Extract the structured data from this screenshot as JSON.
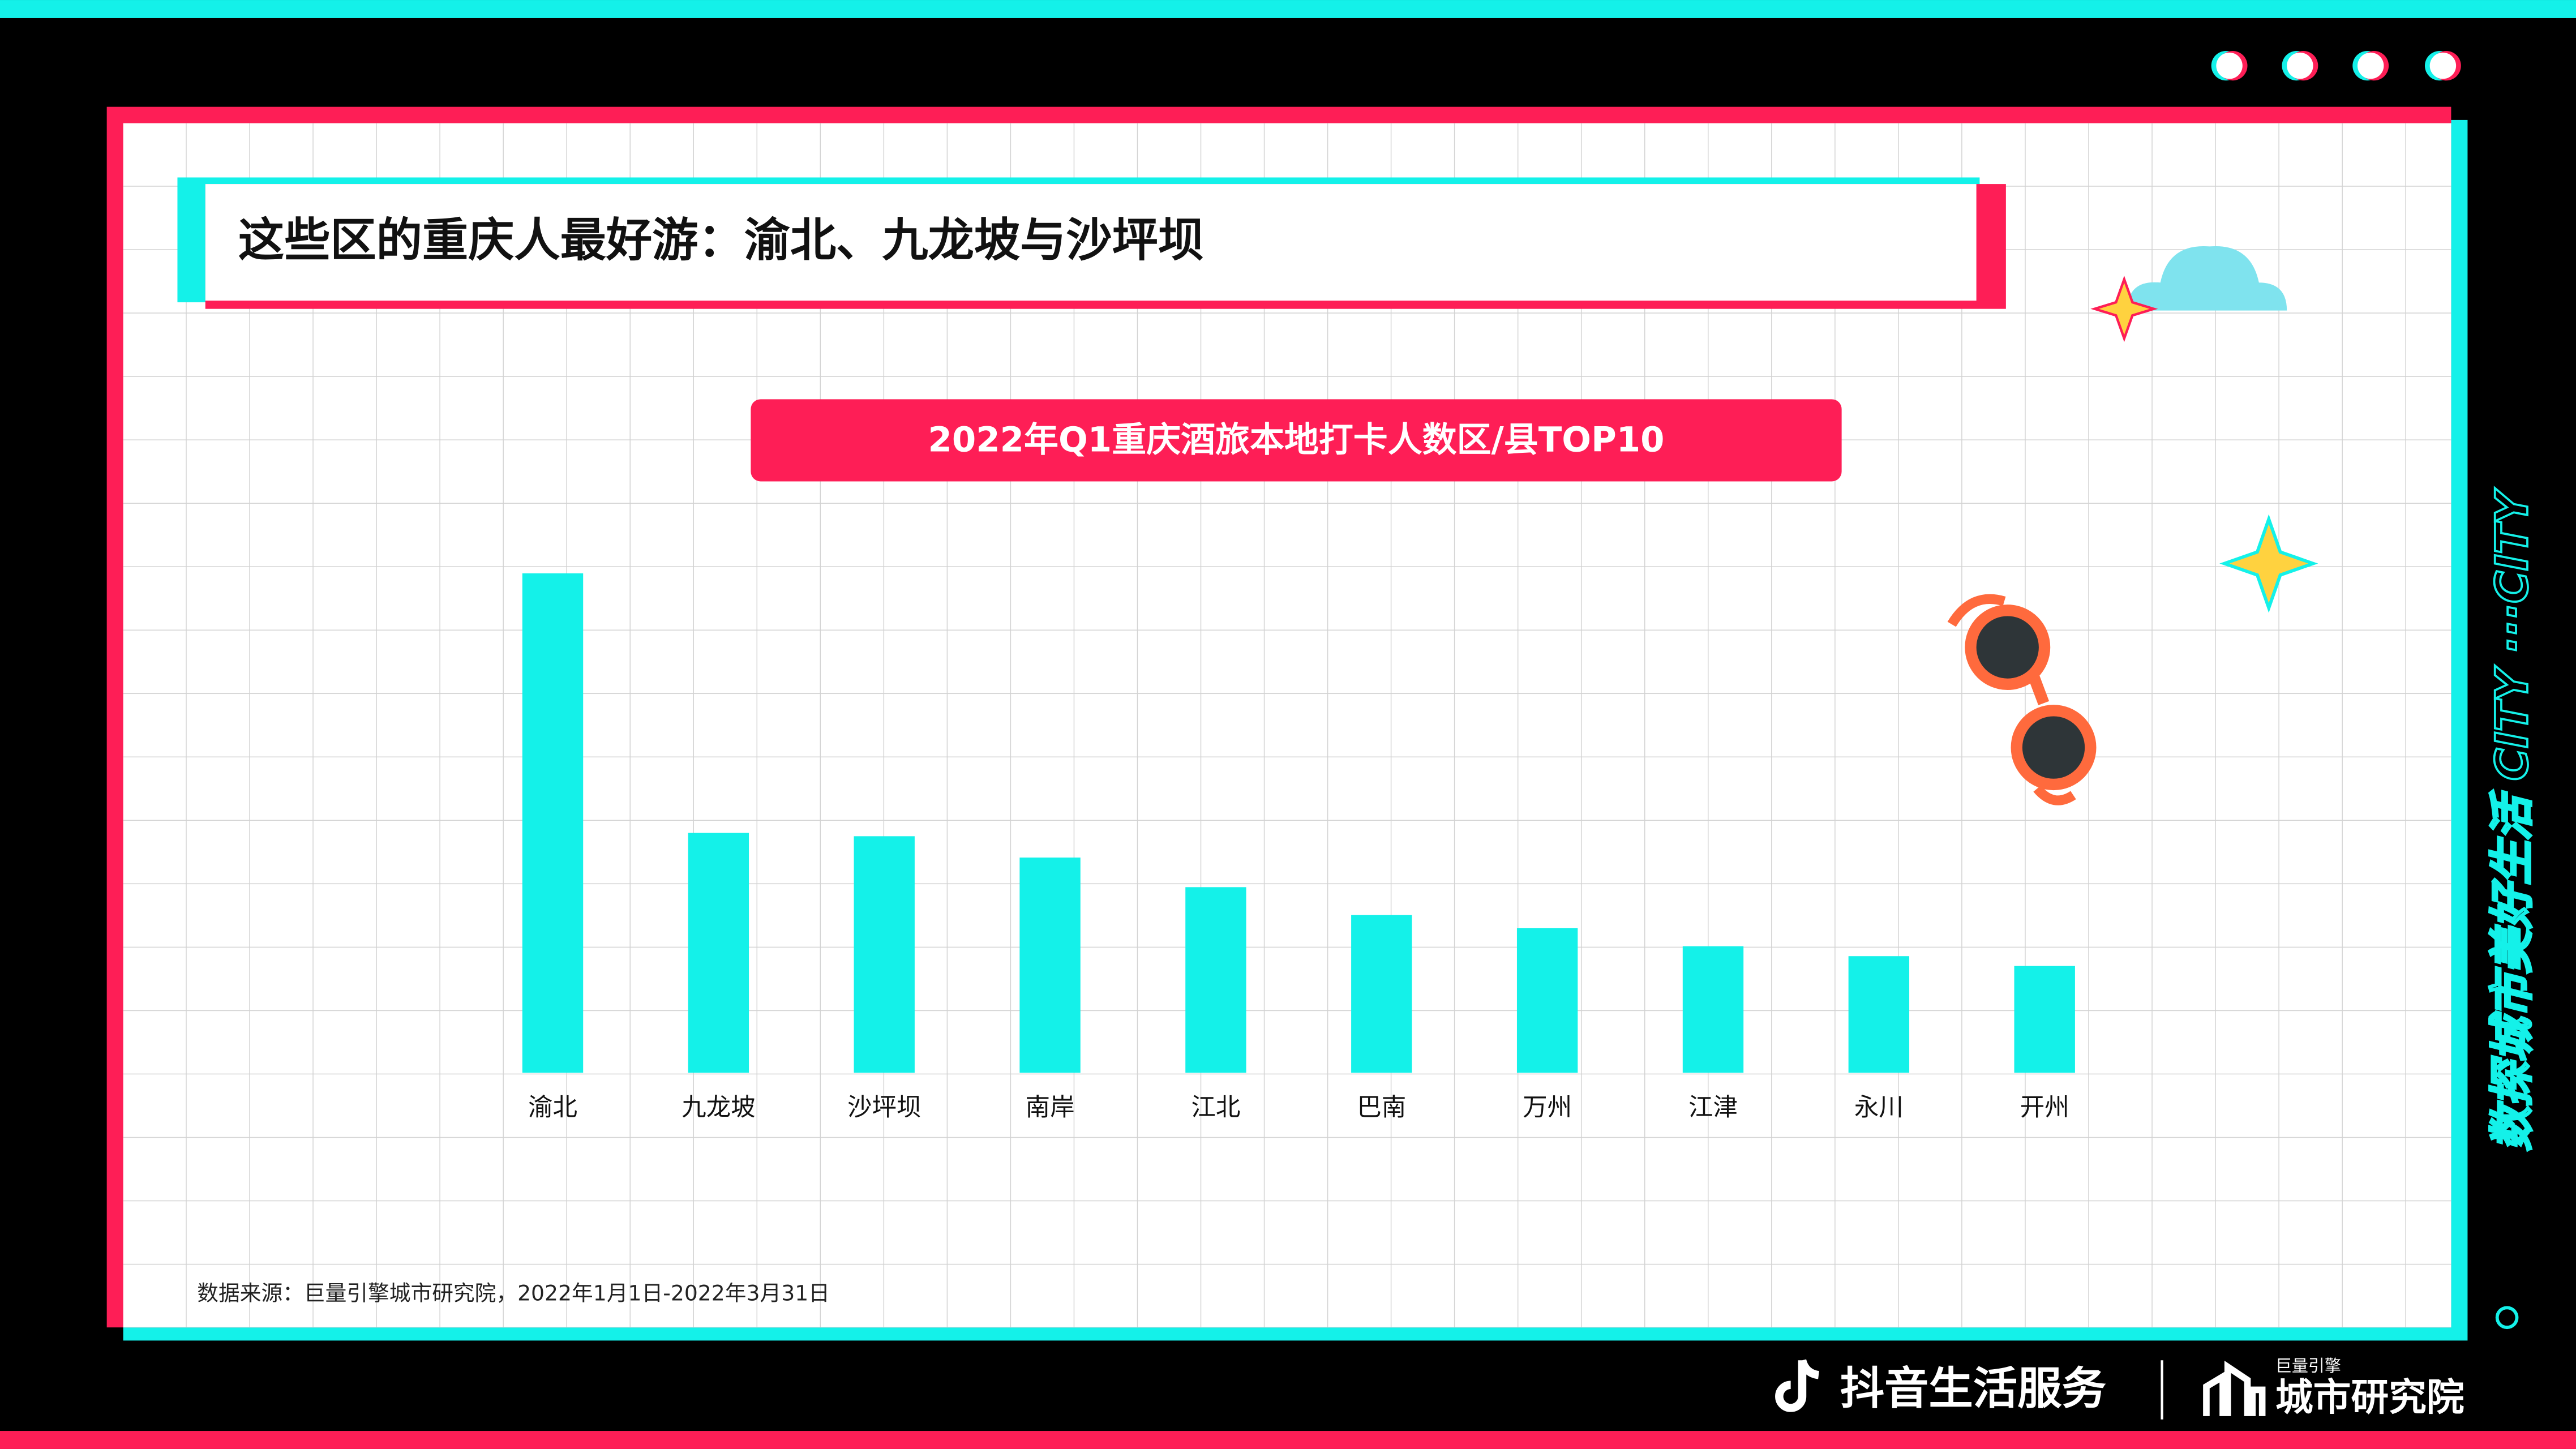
{
  "header": {
    "title": "这些区的重庆人最好游：渝北、九龙坡与沙坪坝"
  },
  "chart_data": {
    "type": "bar",
    "title": "2022年Q1重庆酒旅本地打卡人数区/县TOP10",
    "categories": [
      "渝北",
      "九龙坡",
      "沙坪坝",
      "南岸",
      "江北",
      "巴南",
      "万州",
      "江津",
      "永川",
      "开州"
    ],
    "values": [
      304,
      146,
      144,
      131,
      113,
      96,
      88,
      77,
      71,
      65
    ],
    "color": "#14f1e9",
    "ylim": [
      0,
      310
    ]
  },
  "source": "数据来源：巨量引擎城市研究院，2022年1月1日-2022年3月31日",
  "footer": {
    "brand": "抖音生活服务",
    "sub_small": "巨量引擎",
    "sub_large": "城市研究院"
  },
  "side_text": "数探城市美好生活 CITY ···CITY"
}
